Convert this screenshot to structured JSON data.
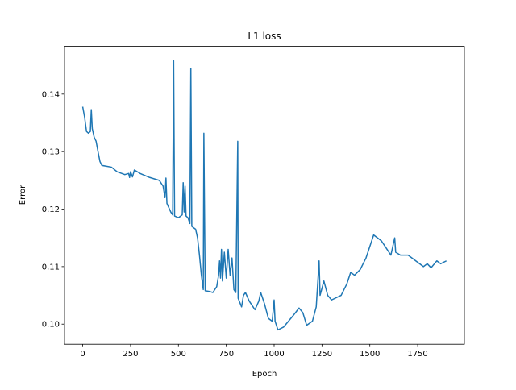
{
  "chart_data": {
    "type": "line",
    "title": "L1 loss",
    "xlabel": "Epoch",
    "ylabel": "Error",
    "color": "#1f77b4",
    "x": [
      0,
      10,
      20,
      30,
      40,
      45,
      50,
      60,
      70,
      80,
      90,
      100,
      150,
      180,
      220,
      240,
      245,
      250,
      260,
      270,
      300,
      350,
      400,
      420,
      430,
      435,
      440,
      460,
      470,
      475,
      480,
      500,
      520,
      525,
      530,
      535,
      540,
      550,
      560,
      565,
      570,
      590,
      600,
      610,
      620,
      630,
      633,
      640,
      660,
      680,
      700,
      710,
      715,
      720,
      725,
      730,
      740,
      750,
      760,
      770,
      780,
      790,
      800,
      810,
      812,
      830,
      840,
      850,
      870,
      900,
      920,
      930,
      950,
      970,
      990,
      1000,
      1005,
      1020,
      1050,
      1100,
      1130,
      1150,
      1170,
      1200,
      1220,
      1235,
      1240,
      1260,
      1280,
      1300,
      1350,
      1380,
      1400,
      1420,
      1450,
      1480,
      1520,
      1560,
      1590,
      1610,
      1630,
      1635,
      1660,
      1700,
      1740,
      1780,
      1800,
      1820,
      1850,
      1870,
      1900
    ],
    "values": [
      0.1378,
      0.136,
      0.1335,
      0.1332,
      0.1335,
      0.1373,
      0.134,
      0.1325,
      0.1318,
      0.13,
      0.1283,
      0.1276,
      0.1273,
      0.1265,
      0.126,
      0.1262,
      0.1255,
      0.1265,
      0.1256,
      0.1268,
      0.1262,
      0.1255,
      0.125,
      0.124,
      0.122,
      0.1254,
      0.121,
      0.1195,
      0.119,
      0.1458,
      0.1188,
      0.1185,
      0.119,
      0.1246,
      0.1195,
      0.124,
      0.1188,
      0.1185,
      0.1175,
      0.1445,
      0.117,
      0.1165,
      0.115,
      0.112,
      0.1085,
      0.106,
      0.1332,
      0.1058,
      0.1057,
      0.1055,
      0.1065,
      0.1085,
      0.111,
      0.108,
      0.113,
      0.1075,
      0.1125,
      0.108,
      0.113,
      0.1085,
      0.1115,
      0.106,
      0.1055,
      0.1318,
      0.1045,
      0.103,
      0.105,
      0.1055,
      0.104,
      0.1025,
      0.104,
      0.1055,
      0.1035,
      0.101,
      0.1005,
      0.1042,
      0.1005,
      0.099,
      0.0995,
      0.1015,
      0.1028,
      0.102,
      0.0998,
      0.1005,
      0.103,
      0.111,
      0.105,
      0.1075,
      0.105,
      0.1042,
      0.105,
      0.107,
      0.109,
      0.1085,
      0.1095,
      0.1115,
      0.1155,
      0.1145,
      0.113,
      0.112,
      0.115,
      0.1125,
      0.112,
      0.112,
      0.111,
      0.11,
      0.1105,
      0.1098,
      0.111,
      0.1105,
      0.111
    ],
    "xlim": [
      -95,
      1994
    ],
    "xticks": [
      0,
      250,
      500,
      750,
      1000,
      1250,
      1500,
      1750
    ],
    "ylim": [
      0.0965,
      0.1483
    ],
    "yticks": [
      {
        "value": 0.1,
        "label": "0.10"
      },
      0.11,
      0.12,
      0.13,
      0.14
    ]
  }
}
